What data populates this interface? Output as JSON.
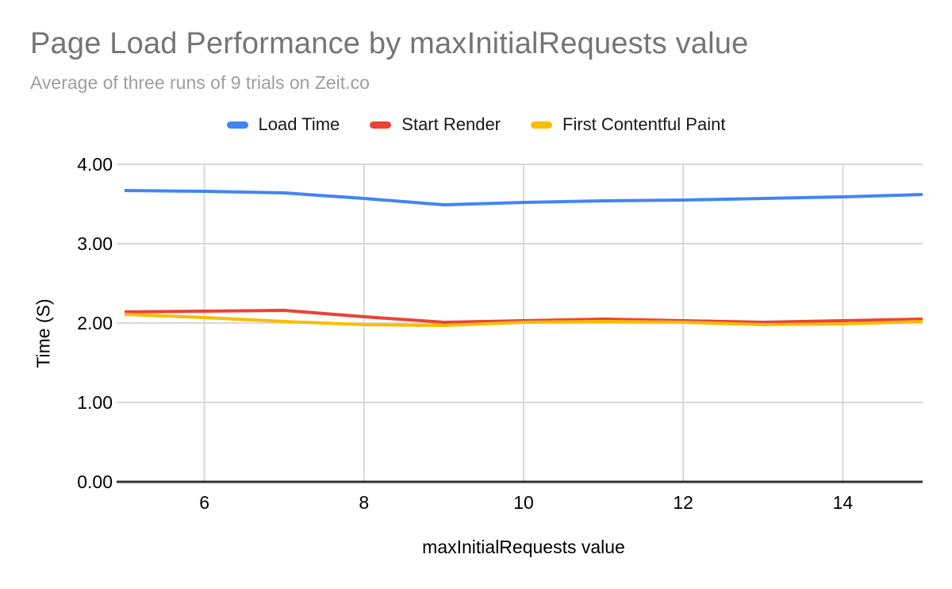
{
  "chart": {
    "title": "Page Load Performance by maxInitialRequests value",
    "subtitle": "Average of three runs of 9 trials on Zeit.co"
  },
  "chart_data": {
    "type": "line",
    "title": "Page Load Performance by maxInitialRequests value",
    "subtitle": "Average of three runs of 9 trials on Zeit.co",
    "xlabel": "maxInitialRequests value",
    "ylabel": "Time (S)",
    "x": [
      5,
      6,
      7,
      8,
      9,
      10,
      11,
      12,
      13,
      14,
      15
    ],
    "series": [
      {
        "name": "Load Time",
        "color": "#4285F4",
        "values": [
          3.67,
          3.66,
          3.64,
          3.57,
          3.49,
          3.52,
          3.54,
          3.55,
          3.57,
          3.59,
          3.62
        ]
      },
      {
        "name": "Start Render",
        "color": "#EA4335",
        "values": [
          2.14,
          2.15,
          2.16,
          2.08,
          2.01,
          2.03,
          2.05,
          2.03,
          2.01,
          2.03,
          2.05
        ]
      },
      {
        "name": "First Contentful Paint",
        "color": "#FBBC04",
        "values": [
          2.11,
          2.07,
          2.02,
          1.98,
          1.97,
          2.01,
          2.02,
          2.01,
          1.98,
          1.99,
          2.02
        ]
      }
    ],
    "xlim": [
      5,
      15
    ],
    "ylim": [
      0,
      4
    ],
    "x_ticks": [
      6,
      8,
      10,
      12,
      14
    ],
    "x_tick_labels": [
      "6",
      "8",
      "10",
      "12",
      "14"
    ],
    "y_ticks": [
      0,
      1,
      2,
      3,
      4
    ],
    "y_tick_labels": [
      "0.00",
      "1.00",
      "2.00",
      "3.00",
      "4.00"
    ],
    "grid": true,
    "legend_position": "top",
    "colors": {
      "grid": "#d9d9d9",
      "axis_line": "#333333",
      "title_text": "#757575",
      "subtitle_text": "#9e9e9e",
      "tick_text": "#000000",
      "legend_text": "#181818"
    }
  }
}
